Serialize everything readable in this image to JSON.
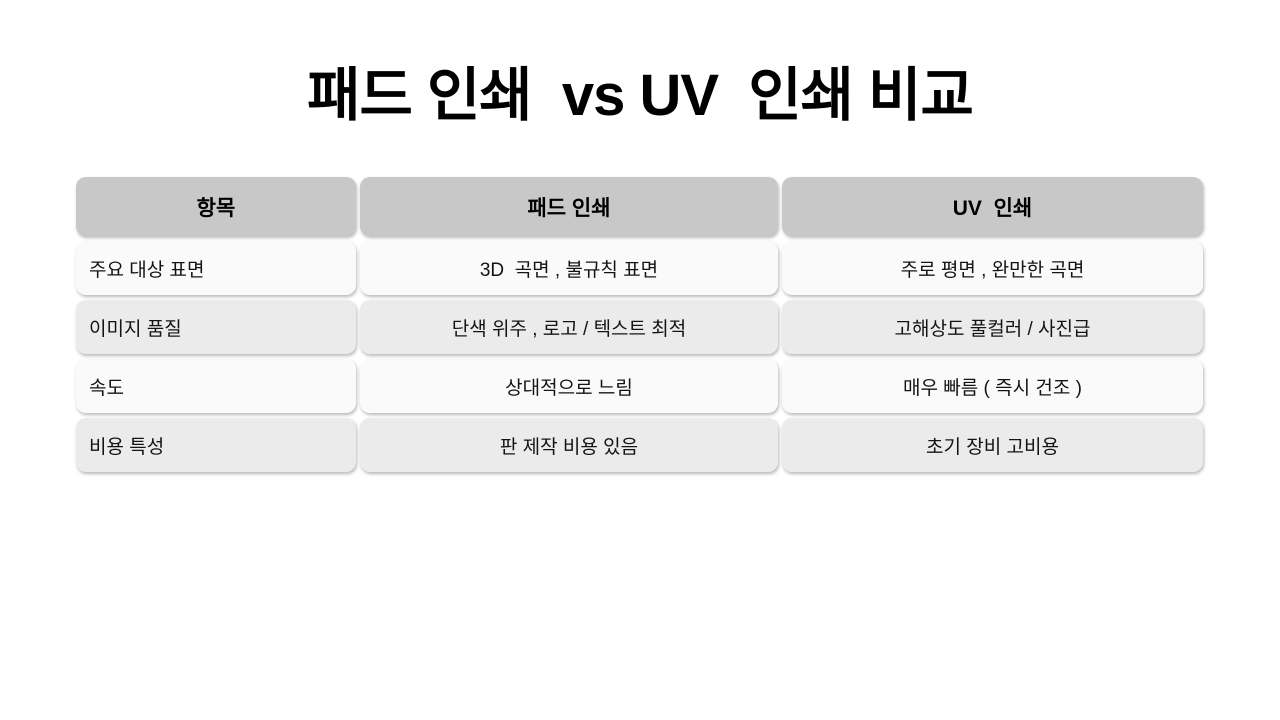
{
  "title": "패드 인쇄  vs UV  인쇄 비교",
  "table": {
    "headers": [
      "항목",
      "패드 인쇄",
      "UV  인쇄"
    ],
    "rows": [
      {
        "item": "주요 대상 표면",
        "pad": "3D  곡면 , 불규칙 표면",
        "uv": "주로 평면 , 완만한 곡면"
      },
      {
        "item": "이미지 품질",
        "pad": "단색 위주 , 로고 / 텍스트 최적",
        "uv": "고해상도 풀컬러 / 사진급"
      },
      {
        "item": "속도",
        "pad": "상대적으로 느림",
        "uv": "매우 빠름 ( 즉시 건조 )"
      },
      {
        "item": "비용 특성",
        "pad": "판 제작 비용 있음",
        "uv": "초기 장비 고비용"
      }
    ]
  },
  "colors": {
    "page_bg": "#ffffff",
    "title_color": "#000000",
    "header_bg": "#c8c8c8",
    "row_light": "#fafafa",
    "row_dark": "#ebebeb",
    "text_color": "#141414"
  }
}
